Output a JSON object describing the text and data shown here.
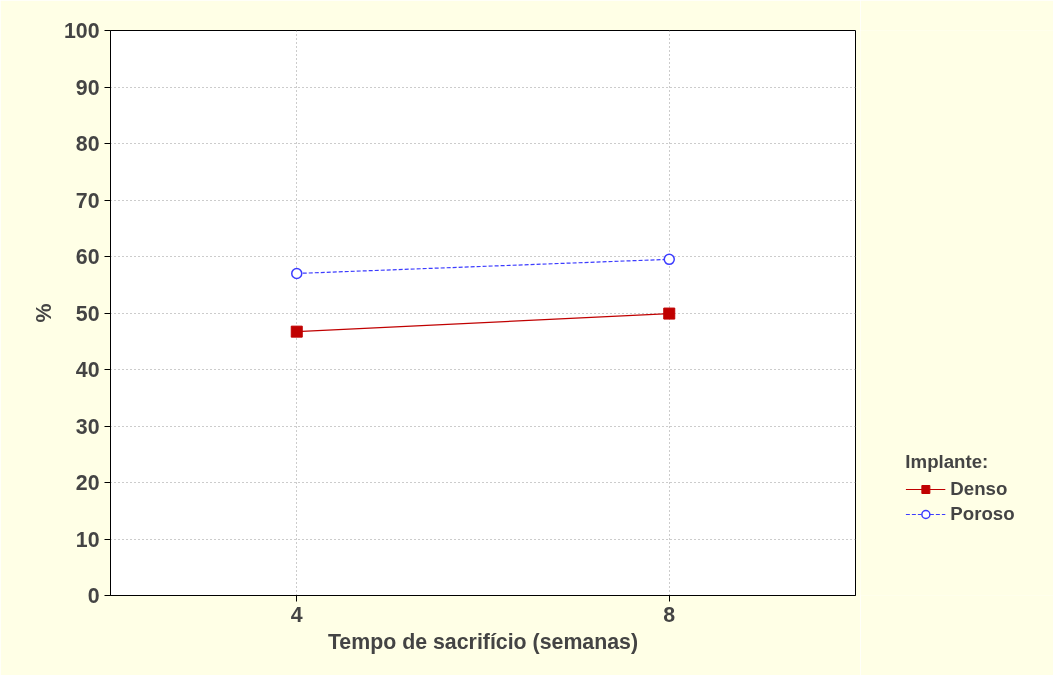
{
  "chart_data": {
    "type": "line",
    "xlabel": "Tempo de sacrifício (semanas)",
    "ylabel": "%",
    "legend_title": "Implante:",
    "categories": [
      "4",
      "8"
    ],
    "series": [
      {
        "name": "Denso",
        "color": "#c00000",
        "values": [
          46.7,
          49.9
        ],
        "marker": "square",
        "line_style": "solid"
      },
      {
        "name": "Poroso",
        "color": "#3c3cff",
        "values": [
          57.0,
          59.5
        ],
        "marker": "circle",
        "line_style": "dashed"
      }
    ],
    "ylim": [
      0,
      100
    ],
    "yticks": [
      0,
      10,
      20,
      30,
      40,
      50,
      60,
      70,
      80,
      90,
      100
    ],
    "grid": true,
    "legend": "bottom right"
  }
}
